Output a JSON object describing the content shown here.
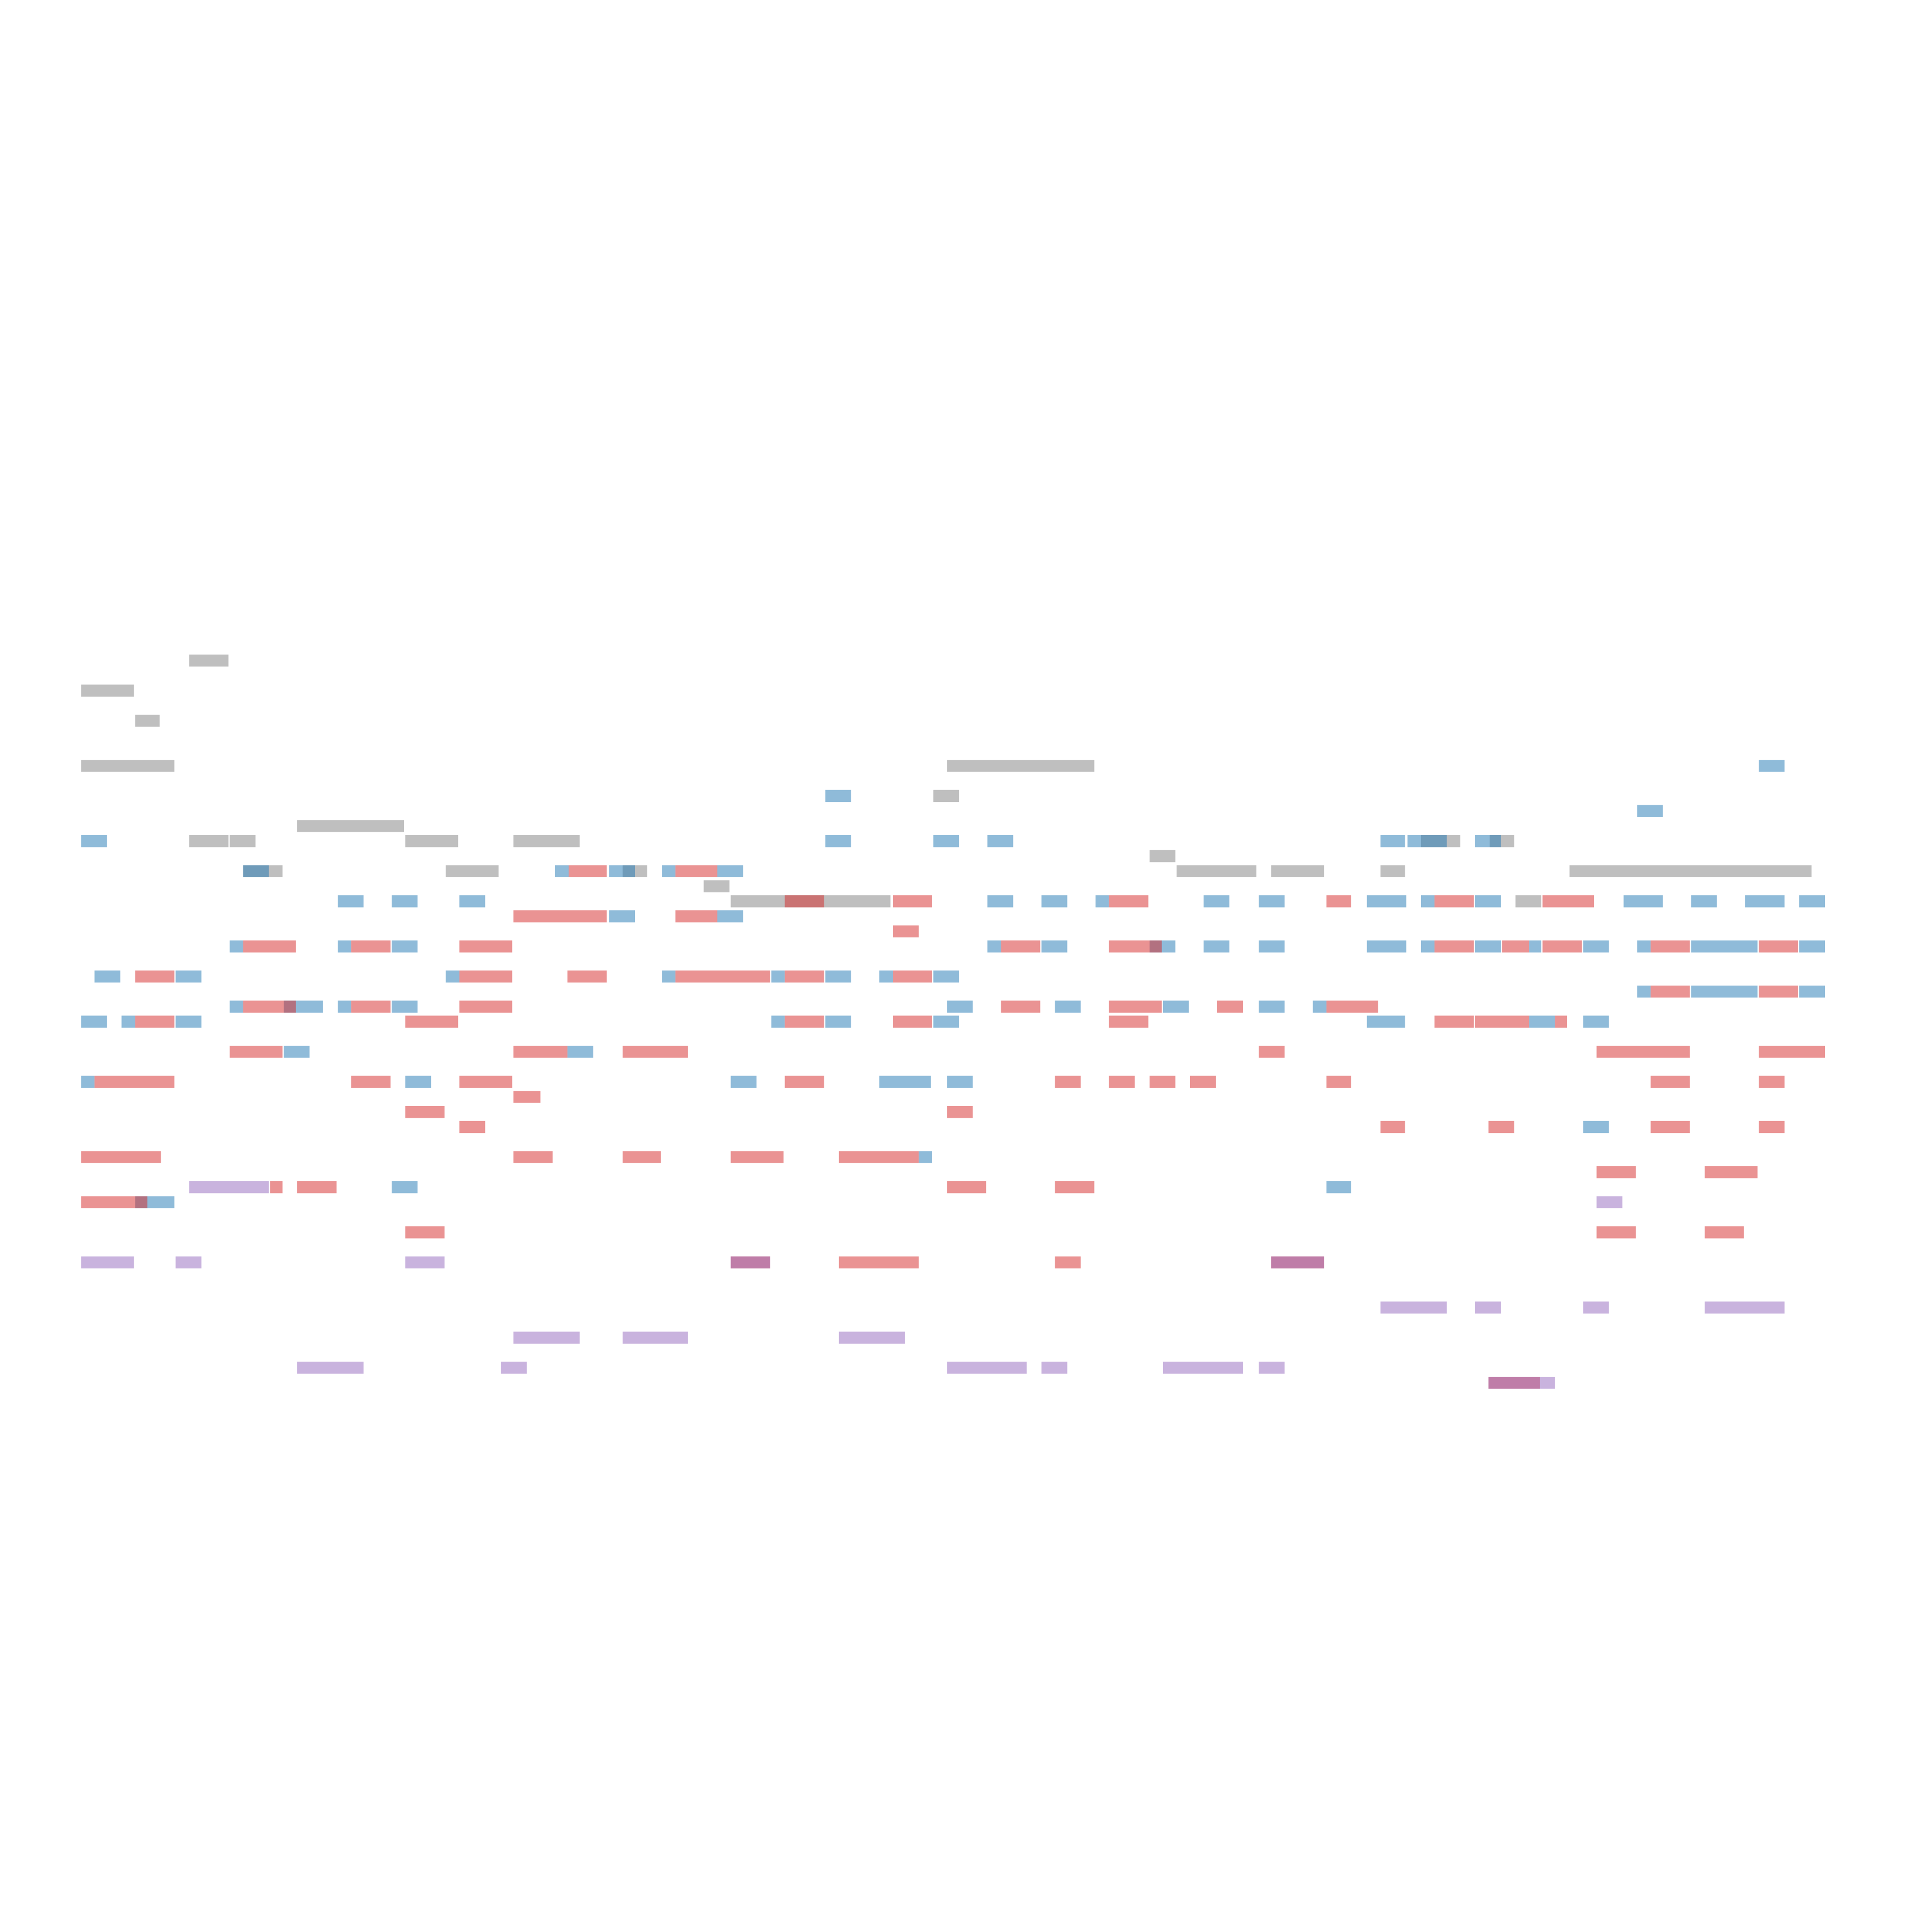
{
  "chart_data": {
    "type": "piano-roll",
    "xlim": [
      0,
      1556
    ],
    "ylim": [
      -36.5,
      91.9
    ],
    "note_height": 0.8,
    "opacity": 0.5,
    "series": [
      {
        "color": "#7f7f7f",
        "notes": [
          [
            154,
            186,
            48
          ],
          [
            66,
            109,
            46
          ],
          [
            110,
            130,
            44
          ],
          [
            66,
            142,
            41
          ],
          [
            771,
            891,
            41
          ],
          [
            760,
            781,
            39
          ],
          [
            154,
            186,
            36
          ],
          [
            187,
            208,
            36
          ],
          [
            242,
            329,
            37
          ],
          [
            330,
            373,
            36
          ],
          [
            418,
            472,
            36
          ],
          [
            198,
            230,
            34
          ],
          [
            363,
            406,
            34
          ],
          [
            507,
            527,
            34
          ],
          [
            936,
            957,
            35
          ],
          [
            958,
            1023,
            34
          ],
          [
            1035,
            1078,
            34
          ],
          [
            1124,
            1144,
            34
          ],
          [
            1278,
            1475,
            34
          ],
          [
            573,
            594,
            33
          ],
          [
            595,
            725,
            32
          ],
          [
            1157,
            1189,
            36
          ],
          [
            1213,
            1233,
            36
          ],
          [
            1234,
            1255,
            32
          ]
        ]
      },
      {
        "color": "#1f77b4",
        "notes": [
          [
            1432,
            1453,
            41
          ],
          [
            672,
            693,
            39
          ],
          [
            1333,
            1354,
            38
          ],
          [
            66,
            87,
            36
          ],
          [
            672,
            693,
            36
          ],
          [
            760,
            781,
            36
          ],
          [
            804,
            825,
            36
          ],
          [
            1124,
            1144,
            36
          ],
          [
            1146,
            1178,
            36
          ],
          [
            1201,
            1222,
            36
          ],
          [
            198,
            219,
            34
          ],
          [
            452,
            463,
            34
          ],
          [
            496,
            517,
            34
          ],
          [
            539,
            550,
            34
          ],
          [
            584,
            605,
            34
          ],
          [
            275,
            296,
            32
          ],
          [
            319,
            340,
            32
          ],
          [
            374,
            395,
            32
          ],
          [
            804,
            825,
            32
          ],
          [
            848,
            869,
            32
          ],
          [
            892,
            903,
            32
          ],
          [
            980,
            1001,
            32
          ],
          [
            1025,
            1046,
            32
          ],
          [
            1113,
            1145,
            32
          ],
          [
            1157,
            1168,
            32
          ],
          [
            1201,
            1222,
            32
          ],
          [
            1322,
            1354,
            32
          ],
          [
            1377,
            1398,
            32
          ],
          [
            1421,
            1453,
            32
          ],
          [
            1465,
            1486,
            32
          ],
          [
            496,
            517,
            31
          ],
          [
            584,
            605,
            31
          ],
          [
            187,
            198,
            29
          ],
          [
            275,
            286,
            29
          ],
          [
            319,
            340,
            29
          ],
          [
            804,
            815,
            29
          ],
          [
            848,
            869,
            29
          ],
          [
            936,
            957,
            29
          ],
          [
            980,
            1001,
            29
          ],
          [
            1025,
            1046,
            29
          ],
          [
            1113,
            1145,
            29
          ],
          [
            1157,
            1168,
            29
          ],
          [
            1201,
            1222,
            29
          ],
          [
            1245,
            1255,
            29
          ],
          [
            1289,
            1310,
            29
          ],
          [
            1333,
            1344,
            29
          ],
          [
            1377,
            1431,
            29
          ],
          [
            1465,
            1486,
            29
          ],
          [
            77,
            98,
            27
          ],
          [
            143,
            164,
            27
          ],
          [
            363,
            374,
            27
          ],
          [
            539,
            550,
            27
          ],
          [
            628,
            639,
            27
          ],
          [
            672,
            693,
            27
          ],
          [
            716,
            727,
            27
          ],
          [
            760,
            781,
            27
          ],
          [
            1333,
            1344,
            26
          ],
          [
            1377,
            1431,
            26
          ],
          [
            1465,
            1486,
            26
          ],
          [
            187,
            198,
            25
          ],
          [
            231,
            263,
            25
          ],
          [
            275,
            286,
            25
          ],
          [
            319,
            340,
            25
          ],
          [
            771,
            792,
            25
          ],
          [
            859,
            880,
            25
          ],
          [
            947,
            968,
            25
          ],
          [
            1025,
            1046,
            25
          ],
          [
            1069,
            1080,
            25
          ],
          [
            66,
            87,
            24
          ],
          [
            99,
            110,
            24
          ],
          [
            143,
            164,
            24
          ],
          [
            628,
            639,
            24
          ],
          [
            672,
            693,
            24
          ],
          [
            760,
            781,
            24
          ],
          [
            1113,
            1144,
            24
          ],
          [
            1245,
            1266,
            24
          ],
          [
            1289,
            1310,
            24
          ],
          [
            231,
            252,
            22
          ],
          [
            462,
            483,
            22
          ],
          [
            66,
            77,
            20
          ],
          [
            330,
            351,
            20
          ],
          [
            595,
            616,
            20
          ],
          [
            716,
            758,
            20
          ],
          [
            771,
            792,
            20
          ],
          [
            1289,
            1310,
            17
          ],
          [
            748,
            759,
            15
          ],
          [
            319,
            340,
            13
          ],
          [
            1080,
            1100,
            13
          ],
          [
            110,
            142,
            12
          ]
        ]
      },
      {
        "color": "#d62728",
        "notes": [
          [
            463,
            494,
            34
          ],
          [
            550,
            584,
            34
          ],
          [
            727,
            759,
            32
          ],
          [
            639,
            671,
            32
          ],
          [
            903,
            935,
            32
          ],
          [
            1080,
            1100,
            32
          ],
          [
            1168,
            1200,
            32
          ],
          [
            1256,
            1298,
            32
          ],
          [
            418,
            494,
            31
          ],
          [
            550,
            584,
            31
          ],
          [
            727,
            748,
            30
          ],
          [
            198,
            241,
            29
          ],
          [
            286,
            318,
            29
          ],
          [
            374,
            417,
            29
          ],
          [
            815,
            847,
            29
          ],
          [
            903,
            946,
            29
          ],
          [
            1168,
            1200,
            29
          ],
          [
            1223,
            1245,
            29
          ],
          [
            1256,
            1288,
            29
          ],
          [
            1344,
            1376,
            29
          ],
          [
            1432,
            1464,
            29
          ],
          [
            110,
            142,
            27
          ],
          [
            374,
            417,
            27
          ],
          [
            462,
            494,
            27
          ],
          [
            550,
            627,
            27
          ],
          [
            639,
            671,
            27
          ],
          [
            727,
            759,
            27
          ],
          [
            1344,
            1376,
            26
          ],
          [
            1432,
            1464,
            26
          ],
          [
            198,
            241,
            25
          ],
          [
            286,
            318,
            25
          ],
          [
            374,
            417,
            25
          ],
          [
            815,
            847,
            25
          ],
          [
            903,
            946,
            25
          ],
          [
            991,
            1012,
            25
          ],
          [
            1080,
            1122,
            25
          ],
          [
            110,
            142,
            24
          ],
          [
            330,
            373,
            24
          ],
          [
            639,
            671,
            24
          ],
          [
            727,
            759,
            24
          ],
          [
            903,
            935,
            24
          ],
          [
            1168,
            1200,
            24
          ],
          [
            1201,
            1245,
            24
          ],
          [
            1266,
            1276,
            24
          ],
          [
            187,
            230,
            22
          ],
          [
            418,
            462,
            22
          ],
          [
            507,
            560,
            22
          ],
          [
            1025,
            1046,
            22
          ],
          [
            1300,
            1376,
            22
          ],
          [
            1432,
            1486,
            22
          ],
          [
            77,
            142,
            20
          ],
          [
            286,
            318,
            20
          ],
          [
            374,
            417,
            20
          ],
          [
            639,
            671,
            20
          ],
          [
            859,
            880,
            20
          ],
          [
            903,
            924,
            20
          ],
          [
            936,
            957,
            20
          ],
          [
            969,
            990,
            20
          ],
          [
            1080,
            1100,
            20
          ],
          [
            1344,
            1376,
            20
          ],
          [
            1432,
            1453,
            20
          ],
          [
            418,
            440,
            19
          ],
          [
            330,
            362,
            18
          ],
          [
            771,
            792,
            18
          ],
          [
            374,
            395,
            17
          ],
          [
            1124,
            1144,
            17
          ],
          [
            1212,
            1233,
            17
          ],
          [
            1344,
            1376,
            17
          ],
          [
            1432,
            1453,
            17
          ],
          [
            66,
            131,
            15
          ],
          [
            418,
            450,
            15
          ],
          [
            507,
            538,
            15
          ],
          [
            595,
            638,
            15
          ],
          [
            683,
            748,
            15
          ],
          [
            1300,
            1332,
            14
          ],
          [
            1388,
            1431,
            14
          ],
          [
            220,
            230,
            13
          ],
          [
            242,
            274,
            13
          ],
          [
            771,
            803,
            13
          ],
          [
            859,
            891,
            13
          ],
          [
            66,
            120,
            12
          ],
          [
            330,
            362,
            10
          ],
          [
            1300,
            1332,
            10
          ],
          [
            1388,
            1420,
            10
          ],
          [
            683,
            748,
            8
          ],
          [
            859,
            880,
            8
          ],
          [
            595,
            627,
            8
          ],
          [
            1035,
            1078,
            8
          ],
          [
            1212,
            1254,
            0
          ]
        ]
      },
      {
        "color": "#9467bd",
        "notes": [
          [
            154,
            219,
            13
          ],
          [
            1300,
            1321,
            12
          ],
          [
            66,
            109,
            8
          ],
          [
            143,
            164,
            8
          ],
          [
            330,
            362,
            8
          ],
          [
            595,
            627,
            8
          ],
          [
            1035,
            1078,
            8
          ],
          [
            1124,
            1178,
            5
          ],
          [
            1201,
            1222,
            5
          ],
          [
            1289,
            1310,
            5
          ],
          [
            1388,
            1453,
            5
          ],
          [
            418,
            472,
            3
          ],
          [
            507,
            560,
            3
          ],
          [
            683,
            737,
            3
          ],
          [
            242,
            296,
            1
          ],
          [
            408,
            429,
            1
          ],
          [
            771,
            836,
            1
          ],
          [
            848,
            869,
            1
          ],
          [
            947,
            1012,
            1
          ],
          [
            1025,
            1046,
            1
          ],
          [
            1212,
            1266,
            0
          ]
        ]
      }
    ]
  }
}
